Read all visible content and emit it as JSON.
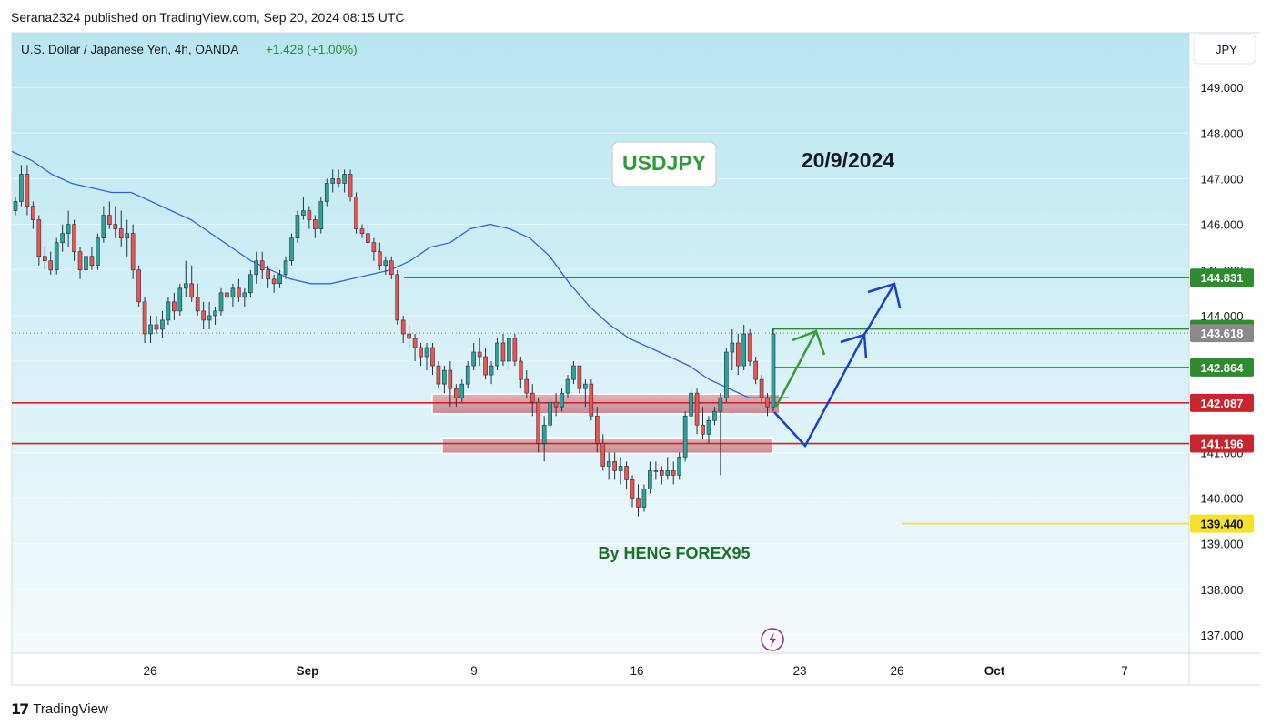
{
  "header": {
    "published": "Serana2324 published on TradingView.com, Sep 20, 2024 08:15 UTC"
  },
  "symbol": {
    "name": "U.S. Dollar / Japanese Yen, 4h, OANDA",
    "change": "+1.428 (+1.00%)",
    "currency": "JPY"
  },
  "annotations": {
    "ticker_box": "USDJPY",
    "date": "20/9/2024",
    "author": "By HENG FOREX95"
  },
  "footer": {
    "brand": "TradingView"
  },
  "colors": {
    "bg_top": "#b8e6f1",
    "bg_bottom": "#f2fbfe",
    "up": "#26a69a",
    "down": "#ef5350",
    "ma": "#3a63d9",
    "resistance": "#2e8b2e",
    "support": "#c9252e",
    "target": "#f5e02a",
    "zone_fill": "#d9878f",
    "blue_arrow": "#1f3fcf",
    "green_arrow": "#3a9a3a",
    "current": "#8a8a8a"
  },
  "chart_data": {
    "type": "candlestick",
    "timeframe": "4h",
    "ylim": [
      136.6,
      150.2
    ],
    "y_ticks": [
      137,
      138,
      139,
      140,
      141,
      142,
      143,
      144,
      145,
      146,
      147,
      148,
      149
    ],
    "y_tick_labels": [
      "137.000",
      "138.000",
      "139.000",
      "140.000",
      "141.000",
      "142.000",
      "143.000",
      "144.000",
      "145.000",
      "146.000",
      "147.000",
      "148.000",
      "149.000"
    ],
    "x_labels": [
      "26",
      "Sep",
      "9",
      "16",
      "23",
      "26",
      "Oct",
      "7"
    ],
    "price_levels": [
      {
        "value": 144.831,
        "label": "144.831",
        "kind": "resistance"
      },
      {
        "value": 143.707,
        "label": "143.707",
        "kind": "resistance"
      },
      {
        "value": 143.618,
        "label": "143.618",
        "kind": "current"
      },
      {
        "value": 142.864,
        "label": "142.864",
        "kind": "resistance"
      },
      {
        "value": 142.087,
        "label": "142.087",
        "kind": "support"
      },
      {
        "value": 141.196,
        "label": "141.196",
        "kind": "support"
      },
      {
        "value": 139.44,
        "label": "139.440",
        "kind": "target"
      }
    ],
    "zones": [
      {
        "from": 141.85,
        "to": 142.28
      },
      {
        "from": 140.98,
        "to": 141.32
      }
    ],
    "candles": [
      [
        146.3,
        146.6,
        146.2,
        146.5
      ],
      [
        146.5,
        147.3,
        146.4,
        147.1
      ],
      [
        147.1,
        147.3,
        146.2,
        146.4
      ],
      [
        146.4,
        146.5,
        145.9,
        146.1
      ],
      [
        146.1,
        146.2,
        145.1,
        145.3
      ],
      [
        145.3,
        145.5,
        145.0,
        145.2
      ],
      [
        145.2,
        145.4,
        144.9,
        145.0
      ],
      [
        145.0,
        145.7,
        144.9,
        145.6
      ],
      [
        145.6,
        146.0,
        145.4,
        145.8
      ],
      [
        145.8,
        146.3,
        145.5,
        146.0
      ],
      [
        146.0,
        146.1,
        145.2,
        145.4
      ],
      [
        145.4,
        145.5,
        144.8,
        145.0
      ],
      [
        145.0,
        145.6,
        144.7,
        145.3
      ],
      [
        145.3,
        145.5,
        145.0,
        145.1
      ],
      [
        145.1,
        145.8,
        145.0,
        145.7
      ],
      [
        145.7,
        146.4,
        145.6,
        146.2
      ],
      [
        146.2,
        146.5,
        145.9,
        146.0
      ],
      [
        146.0,
        146.4,
        145.7,
        145.9
      ],
      [
        145.9,
        146.3,
        145.5,
        145.7
      ],
      [
        145.7,
        146.1,
        145.3,
        145.8
      ],
      [
        145.8,
        146.0,
        144.8,
        145.0
      ],
      [
        145.0,
        145.1,
        144.2,
        144.3
      ],
      [
        144.3,
        144.4,
        143.4,
        143.6
      ],
      [
        143.6,
        144.0,
        143.4,
        143.8
      ],
      [
        143.8,
        144.0,
        143.6,
        143.7
      ],
      [
        143.7,
        144.1,
        143.5,
        143.9
      ],
      [
        143.9,
        144.4,
        143.8,
        144.3
      ],
      [
        144.3,
        144.5,
        143.9,
        144.1
      ],
      [
        144.1,
        144.7,
        144.0,
        144.6
      ],
      [
        144.6,
        145.2,
        144.4,
        144.7
      ],
      [
        144.7,
        145.1,
        144.3,
        144.4
      ],
      [
        144.4,
        144.7,
        144.0,
        144.1
      ],
      [
        144.1,
        144.3,
        143.7,
        143.9
      ],
      [
        143.9,
        144.3,
        143.7,
        144.0
      ],
      [
        144.0,
        144.2,
        143.8,
        144.1
      ],
      [
        144.1,
        144.6,
        144.0,
        144.5
      ],
      [
        144.5,
        144.7,
        144.3,
        144.4
      ],
      [
        144.4,
        144.7,
        144.2,
        144.6
      ],
      [
        144.6,
        144.8,
        144.3,
        144.4
      ],
      [
        144.4,
        144.6,
        144.2,
        144.5
      ],
      [
        144.5,
        145.0,
        144.4,
        144.9
      ],
      [
        144.9,
        145.4,
        144.7,
        145.2
      ],
      [
        145.2,
        145.4,
        144.8,
        145.0
      ],
      [
        145.0,
        145.1,
        144.6,
        144.8
      ],
      [
        144.8,
        144.9,
        144.5,
        144.7
      ],
      [
        144.7,
        145.0,
        144.6,
        144.9
      ],
      [
        144.9,
        145.3,
        144.8,
        145.2
      ],
      [
        145.2,
        145.8,
        145.1,
        145.7
      ],
      [
        145.7,
        146.3,
        145.6,
        146.2
      ],
      [
        146.2,
        146.6,
        146.1,
        146.3
      ],
      [
        146.3,
        146.4,
        145.9,
        146.1
      ],
      [
        146.1,
        146.2,
        145.7,
        145.9
      ],
      [
        145.9,
        146.6,
        145.8,
        146.5
      ],
      [
        146.5,
        147.0,
        146.4,
        146.9
      ],
      [
        146.9,
        147.2,
        146.7,
        147.0
      ],
      [
        147.0,
        147.2,
        146.8,
        146.9
      ],
      [
        146.9,
        147.2,
        146.7,
        147.1
      ],
      [
        147.1,
        147.2,
        146.5,
        146.6
      ],
      [
        146.6,
        146.7,
        145.8,
        145.9
      ],
      [
        145.9,
        146.0,
        145.7,
        145.8
      ],
      [
        145.8,
        146.0,
        145.5,
        145.6
      ],
      [
        145.6,
        145.7,
        145.2,
        145.4
      ],
      [
        145.4,
        145.6,
        145.0,
        145.1
      ],
      [
        145.1,
        145.3,
        144.9,
        145.2
      ],
      [
        145.2,
        145.3,
        144.8,
        144.9
      ],
      [
        144.9,
        145.0,
        143.8,
        143.9
      ],
      [
        143.9,
        144.0,
        143.4,
        143.6
      ],
      [
        143.6,
        143.8,
        143.3,
        143.5
      ],
      [
        143.5,
        143.6,
        143.0,
        143.3
      ],
      [
        143.3,
        143.4,
        142.9,
        143.1
      ],
      [
        143.1,
        143.4,
        142.8,
        143.3
      ],
      [
        143.3,
        143.4,
        142.7,
        142.9
      ],
      [
        142.9,
        143.0,
        142.4,
        142.5
      ],
      [
        142.5,
        142.9,
        142.3,
        142.8
      ],
      [
        142.8,
        143.0,
        142.0,
        142.4
      ],
      [
        142.4,
        142.5,
        142.0,
        142.2
      ],
      [
        142.2,
        142.6,
        142.1,
        142.5
      ],
      [
        142.5,
        143.0,
        142.4,
        142.9
      ],
      [
        142.9,
        143.4,
        142.8,
        143.2
      ],
      [
        143.2,
        143.5,
        142.9,
        143.1
      ],
      [
        143.1,
        143.3,
        142.6,
        142.7
      ],
      [
        142.7,
        143.0,
        142.5,
        142.9
      ],
      [
        142.9,
        143.5,
        142.8,
        143.4
      ],
      [
        143.4,
        143.6,
        142.9,
        143.0
      ],
      [
        143.0,
        143.6,
        142.8,
        143.5
      ],
      [
        143.5,
        143.6,
        142.9,
        143.0
      ],
      [
        143.0,
        143.1,
        142.4,
        142.6
      ],
      [
        142.6,
        142.8,
        142.2,
        142.3
      ],
      [
        142.3,
        142.5,
        141.8,
        142.1
      ],
      [
        142.1,
        142.2,
        141.0,
        141.2
      ],
      [
        141.2,
        141.8,
        140.8,
        141.6
      ],
      [
        141.6,
        142.2,
        141.5,
        142.1
      ],
      [
        142.1,
        142.3,
        141.8,
        142.0
      ],
      [
        142.0,
        142.4,
        141.9,
        142.3
      ],
      [
        142.3,
        142.7,
        142.2,
        142.6
      ],
      [
        142.6,
        143.0,
        142.5,
        142.9
      ],
      [
        142.9,
        142.9,
        142.3,
        142.4
      ],
      [
        142.4,
        142.6,
        142.0,
        142.5
      ],
      [
        142.5,
        142.6,
        141.7,
        141.8
      ],
      [
        141.8,
        142.0,
        141.0,
        141.2
      ],
      [
        141.2,
        141.4,
        140.6,
        140.7
      ],
      [
        140.7,
        141.0,
        140.4,
        140.8
      ],
      [
        140.8,
        141.0,
        140.4,
        140.6
      ],
      [
        140.6,
        140.9,
        140.3,
        140.7
      ],
      [
        140.7,
        140.8,
        140.2,
        140.4
      ],
      [
        140.4,
        140.5,
        139.8,
        140.0
      ],
      [
        140.0,
        140.3,
        139.6,
        139.8
      ],
      [
        139.8,
        140.3,
        139.7,
        140.2
      ],
      [
        140.2,
        140.8,
        140.1,
        140.6
      ],
      [
        140.6,
        140.8,
        140.4,
        140.6
      ],
      [
        140.6,
        140.7,
        140.3,
        140.5
      ],
      [
        140.5,
        140.9,
        140.4,
        140.6
      ],
      [
        140.6,
        140.8,
        140.3,
        140.5
      ],
      [
        140.5,
        141.0,
        140.4,
        140.9
      ],
      [
        140.9,
        141.9,
        140.8,
        141.8
      ],
      [
        141.8,
        142.4,
        141.6,
        142.3
      ],
      [
        142.3,
        142.4,
        141.4,
        141.6
      ],
      [
        141.6,
        142.0,
        141.3,
        141.4
      ],
      [
        141.4,
        141.8,
        141.2,
        141.7
      ],
      [
        141.7,
        142.0,
        141.6,
        141.9
      ],
      [
        141.9,
        142.3,
        140.5,
        142.2
      ],
      [
        142.2,
        143.3,
        142.1,
        143.2
      ],
      [
        143.2,
        143.7,
        142.8,
        143.4
      ],
      [
        143.4,
        143.6,
        142.7,
        142.9
      ],
      [
        142.9,
        143.8,
        142.8,
        143.6
      ],
      [
        143.6,
        143.7,
        142.9,
        143.0
      ],
      [
        143.0,
        143.1,
        142.5,
        142.6
      ],
      [
        142.6,
        142.7,
        142.1,
        142.2
      ],
      [
        142.2,
        142.3,
        141.8,
        142.0
      ],
      [
        142.0,
        143.7,
        141.9,
        143.6
      ]
    ],
    "ma_series": [
      147.6,
      147.4,
      147.1,
      146.9,
      146.8,
      146.7,
      146.7,
      146.5,
      146.3,
      146.1,
      145.8,
      145.5,
      145.2,
      145.0,
      144.8,
      144.7,
      144.7,
      144.8,
      144.9,
      145.0,
      145.2,
      145.5,
      145.6,
      145.9,
      146.0,
      145.9,
      145.7,
      145.3,
      144.7,
      144.2,
      143.8,
      143.5,
      143.3,
      143.1,
      142.9,
      142.6,
      142.4,
      142.2,
      142.2,
      142.2
    ]
  }
}
